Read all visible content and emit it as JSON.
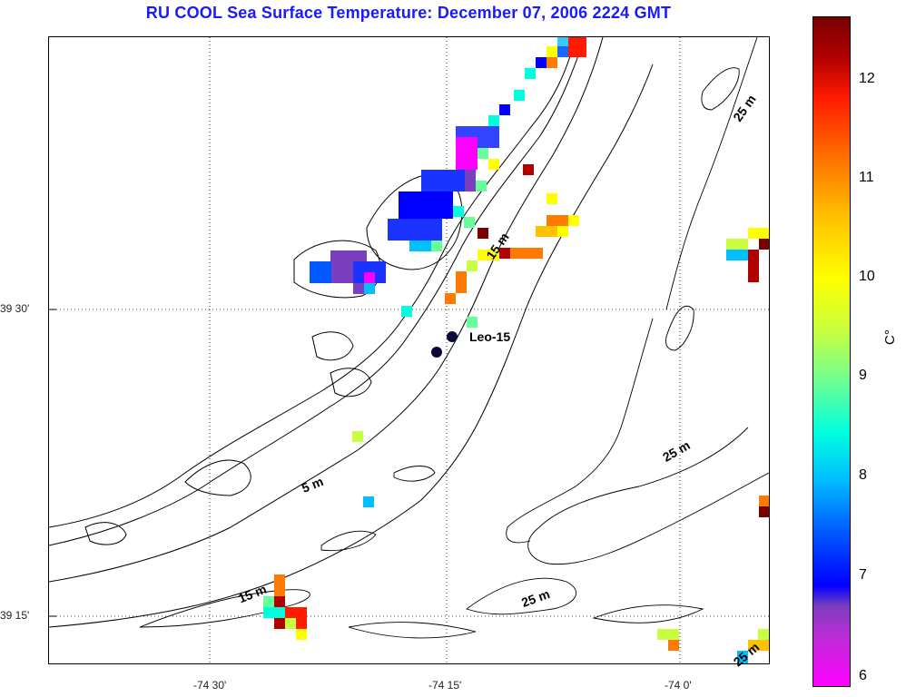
{
  "title": "RU COOL  Sea Surface Temperature:  December 07, 2006 2224 GMT",
  "axes": {
    "lat_ticks": [
      "39 30'",
      "39 15'"
    ],
    "lon_ticks": [
      "-74 30'",
      "-74 15'",
      "-74 0'"
    ]
  },
  "colorbar": {
    "unit": "C°",
    "ticks": [
      "12",
      "11",
      "10",
      "9",
      "8",
      "7",
      "6"
    ]
  },
  "labels": {
    "station": "Leo-15",
    "depth_5": "5 m",
    "depth_15a": "15 m",
    "depth_15b": "15 m",
    "depth_25a": "25 m",
    "depth_25b": "25 m",
    "depth_25c": "25 m",
    "depth_25d": "25 m"
  }
}
